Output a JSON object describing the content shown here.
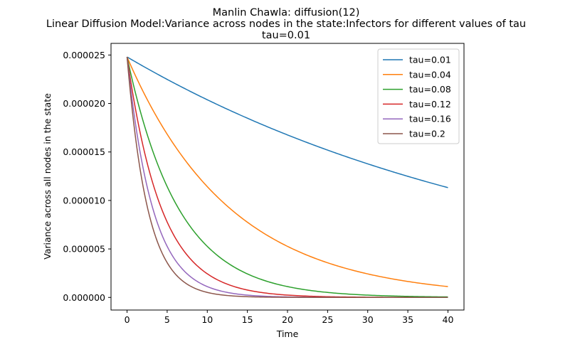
{
  "chart_data": {
    "type": "line",
    "title": [
      "Manlin Chawla: diffusion(12)",
      "Linear Diffusion Model:Variance across nodes in the state:Infectors for different values of tau",
      "tau=0.01"
    ],
    "xlabel": "Time",
    "ylabel": "Variance across all nodes in the state",
    "xlim": [
      -2,
      42
    ],
    "ylim": [
      -1.3e-06,
      2.62e-05
    ],
    "xticks": [
      0,
      5,
      10,
      15,
      20,
      25,
      30,
      35,
      40
    ],
    "xtick_labels": [
      "0",
      "5",
      "10",
      "15",
      "20",
      "25",
      "30",
      "35",
      "40"
    ],
    "yticks": [
      0,
      5e-06,
      1e-05,
      1.5e-05,
      2e-05,
      2.5e-05
    ],
    "ytick_labels": [
      "0.000000",
      "0.000005",
      "0.000010",
      "0.000015",
      "0.000020",
      "0.000025"
    ],
    "grid": false,
    "legend_position": "top-right",
    "y0": 2.48e-05,
    "x_range": [
      0,
      40
    ],
    "series": [
      {
        "name": "tau=0.01",
        "color": "#1f77b4",
        "decay_rate": 0.0196
      },
      {
        "name": "tau=0.04",
        "color": "#ff7f0e",
        "decay_rate": 0.0775
      },
      {
        "name": "tau=0.08",
        "color": "#2ca02c",
        "decay_rate": 0.155
      },
      {
        "name": "tau=0.12",
        "color": "#d62728",
        "decay_rate": 0.232
      },
      {
        "name": "tau=0.16",
        "color": "#9467bd",
        "decay_rate": 0.31
      },
      {
        "name": "tau=0.2",
        "color": "#8c564b",
        "decay_rate": 0.387
      }
    ]
  }
}
